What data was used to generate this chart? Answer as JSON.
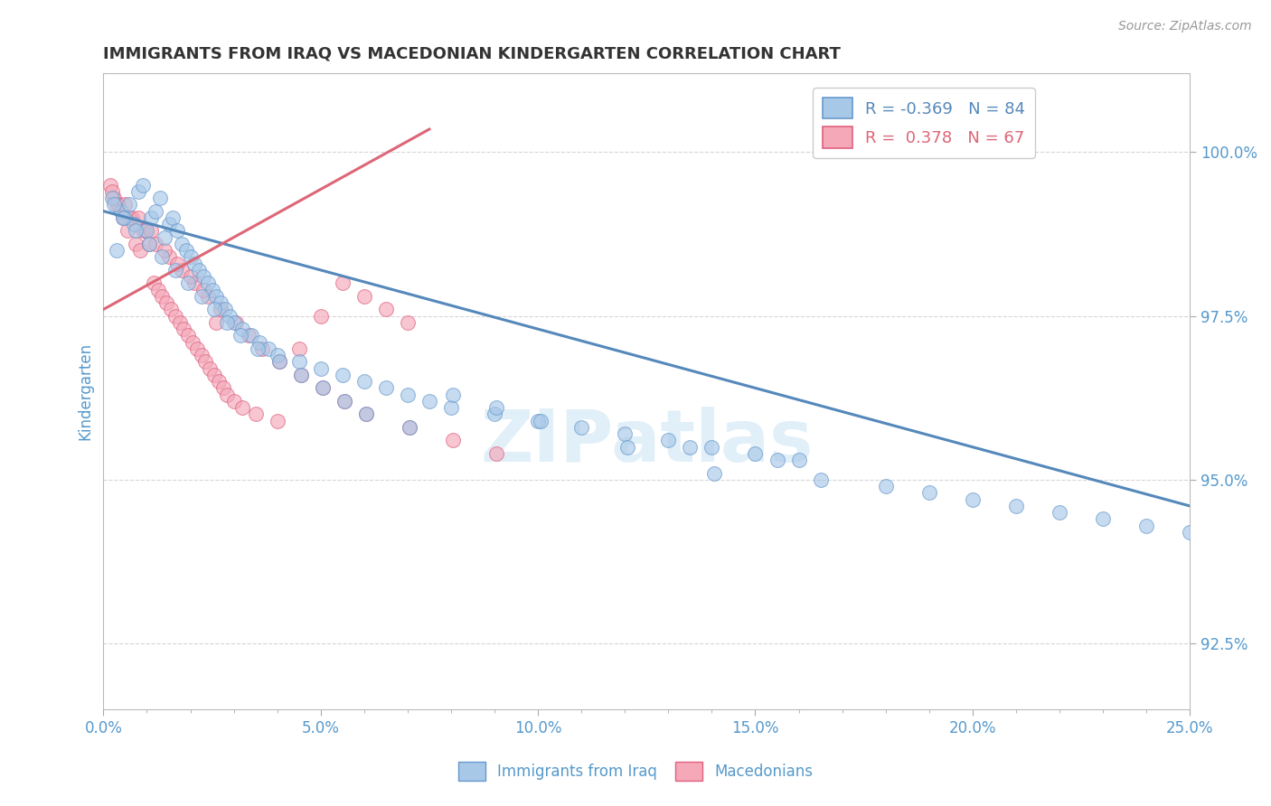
{
  "title": "IMMIGRANTS FROM IRAQ VS MACEDONIAN KINDERGARTEN CORRELATION CHART",
  "source_text": "Source: ZipAtlas.com",
  "ylabel": "Kindergarten",
  "xlim": [
    0.0,
    25.0
  ],
  "ylim": [
    91.5,
    101.2
  ],
  "x_ticks": [
    0.0,
    5.0,
    10.0,
    15.0,
    20.0,
    25.0
  ],
  "x_tick_labels": [
    "0.0%",
    "5.0%",
    "10.0%",
    "15.0%",
    "20.0%",
    "25.0%"
  ],
  "y_ticks": [
    92.5,
    95.0,
    97.5,
    100.0
  ],
  "y_tick_labels": [
    "92.5%",
    "95.0%",
    "97.5%",
    "100.0%"
  ],
  "blue_color": "#A8C8E8",
  "pink_color": "#F4A8B8",
  "blue_edge_color": "#6699CC",
  "pink_edge_color": "#E06080",
  "blue_line_color": "#5588BB",
  "pink_line_color": "#DD6677",
  "legend_R_blue": "-0.369",
  "legend_N_blue": "84",
  "legend_R_pink": "0.378",
  "legend_N_pink": "67",
  "watermark": "ZIPatlas",
  "blue_scatter_x": [
    0.2,
    0.3,
    0.4,
    0.5,
    0.6,
    0.7,
    0.8,
    0.9,
    1.0,
    1.1,
    1.2,
    1.3,
    1.4,
    1.5,
    1.6,
    1.7,
    1.8,
    1.9,
    2.0,
    2.1,
    2.2,
    2.3,
    2.4,
    2.5,
    2.6,
    2.7,
    2.8,
    2.9,
    3.0,
    3.2,
    3.4,
    3.6,
    3.8,
    4.0,
    4.5,
    5.0,
    5.5,
    6.0,
    6.5,
    7.0,
    7.5,
    8.0,
    9.0,
    10.0,
    11.0,
    12.0,
    13.0,
    14.0,
    15.0,
    16.0,
    0.25,
    0.45,
    0.75,
    1.05,
    1.35,
    1.65,
    1.95,
    2.25,
    2.55,
    2.85,
    3.15,
    3.55,
    4.05,
    4.55,
    5.05,
    5.55,
    6.05,
    7.05,
    8.05,
    9.05,
    10.05,
    12.05,
    14.05,
    16.5,
    18.0,
    19.0,
    20.0,
    21.0,
    22.0,
    23.0,
    24.0,
    25.0,
    13.5,
    15.5
  ],
  "blue_scatter_y": [
    99.3,
    98.5,
    99.1,
    99.0,
    99.2,
    98.9,
    99.4,
    99.5,
    98.8,
    99.0,
    99.1,
    99.3,
    98.7,
    98.9,
    99.0,
    98.8,
    98.6,
    98.5,
    98.4,
    98.3,
    98.2,
    98.1,
    98.0,
    97.9,
    97.8,
    97.7,
    97.6,
    97.5,
    97.4,
    97.3,
    97.2,
    97.1,
    97.0,
    96.9,
    96.8,
    96.7,
    96.6,
    96.5,
    96.4,
    96.3,
    96.2,
    96.1,
    96.0,
    95.9,
    95.8,
    95.7,
    95.6,
    95.5,
    95.4,
    95.3,
    99.2,
    99.0,
    98.8,
    98.6,
    98.4,
    98.2,
    98.0,
    97.8,
    97.6,
    97.4,
    97.2,
    97.0,
    96.8,
    96.6,
    96.4,
    96.2,
    96.0,
    95.8,
    96.3,
    96.1,
    95.9,
    95.5,
    95.1,
    95.0,
    94.9,
    94.8,
    94.7,
    94.6,
    94.5,
    94.4,
    94.3,
    94.2,
    95.5,
    95.3
  ],
  "pink_scatter_x": [
    0.15,
    0.25,
    0.35,
    0.45,
    0.55,
    0.65,
    0.75,
    0.85,
    0.95,
    1.05,
    1.15,
    1.25,
    1.35,
    1.45,
    1.55,
    1.65,
    1.75,
    1.85,
    1.95,
    2.05,
    2.15,
    2.25,
    2.35,
    2.45,
    2.55,
    2.65,
    2.75,
    2.85,
    3.0,
    3.2,
    3.5,
    4.0,
    4.5,
    5.0,
    5.5,
    6.0,
    6.5,
    7.0,
    0.3,
    0.6,
    0.9,
    1.2,
    1.5,
    1.8,
    2.1,
    2.4,
    2.7,
    3.05,
    3.35,
    3.65,
    4.05,
    4.55,
    5.05,
    5.55,
    6.05,
    7.05,
    8.05,
    9.05,
    0.2,
    0.5,
    0.8,
    1.1,
    1.4,
    1.7,
    2.0,
    2.3,
    2.6
  ],
  "pink_scatter_y": [
    99.5,
    99.3,
    99.2,
    99.0,
    98.8,
    99.0,
    98.6,
    98.5,
    98.8,
    98.6,
    98.0,
    97.9,
    97.8,
    97.7,
    97.6,
    97.5,
    97.4,
    97.3,
    97.2,
    97.1,
    97.0,
    96.9,
    96.8,
    96.7,
    96.6,
    96.5,
    96.4,
    96.3,
    96.2,
    96.1,
    96.0,
    95.9,
    97.0,
    97.5,
    98.0,
    97.8,
    97.6,
    97.4,
    99.2,
    99.0,
    98.8,
    98.6,
    98.4,
    98.2,
    98.0,
    97.8,
    97.6,
    97.4,
    97.2,
    97.0,
    96.8,
    96.6,
    96.4,
    96.2,
    96.0,
    95.8,
    95.6,
    95.4,
    99.4,
    99.2,
    99.0,
    98.8,
    98.5,
    98.3,
    98.1,
    97.9,
    97.4
  ],
  "blue_trend_x": [
    0.0,
    25.0
  ],
  "blue_trend_y": [
    99.1,
    94.6
  ],
  "pink_trend_x": [
    0.0,
    7.5
  ],
  "pink_trend_y": [
    97.6,
    100.35
  ],
  "grid_color": "#CCCCCC",
  "background_color": "#FFFFFF",
  "title_color": "#333333",
  "tick_label_color": "#5599CC",
  "legend_label1": "Immigrants from Iraq",
  "legend_label2": "Macedonians"
}
